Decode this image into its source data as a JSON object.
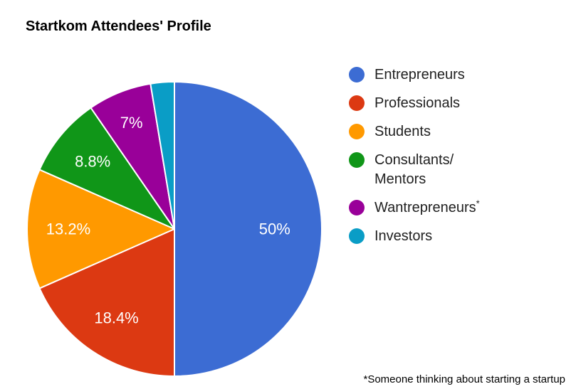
{
  "page": {
    "background_color": "#FFFFFF",
    "title_color": "#000000",
    "legend_text_color": "#212121",
    "footnote_color": "#000000"
  },
  "chart_data": {
    "type": "pie",
    "title": "Startkom Attendees' Profile",
    "legend_position": "right",
    "direction": "clockwise",
    "start_angle_deg": 0,
    "slice_border_color": "#FFFFFF",
    "slice_label_color": "#FFFFFF",
    "slices": [
      {
        "label": "Entrepreneurs",
        "value": 50,
        "display_label": "50%",
        "color": "#3C6CD3"
      },
      {
        "label": "Professionals",
        "value": 18.4,
        "display_label": "18.4%",
        "color": "#DC3912"
      },
      {
        "label": "Students",
        "value": 13.2,
        "display_label": "13.2%",
        "color": "#FF9900"
      },
      {
        "label": "Consultants/Mentors",
        "value": 8.8,
        "display_label": "8.8%",
        "color": "#109618",
        "legend_lines": [
          "Consultants/",
          "Mentors"
        ]
      },
      {
        "label": "Wantrepreneurs",
        "value": 7,
        "display_label": "7%",
        "color": "#990099",
        "legend_marker": "*"
      },
      {
        "label": "Investors",
        "value": 2.6,
        "display_label": "",
        "color": "#0A9DC6"
      }
    ],
    "footnote": "*Someone thinking about starting a startup"
  }
}
